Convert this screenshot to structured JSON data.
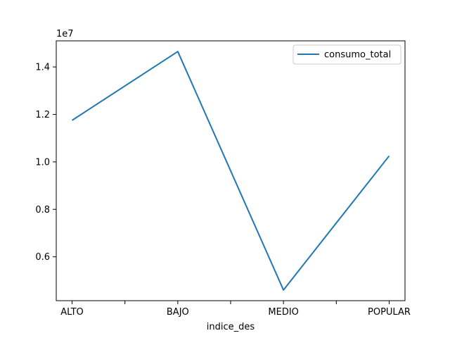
{
  "chart_data": {
    "type": "line",
    "categories": [
      "ALTO",
      "BAJO",
      "MEDIO",
      "POPULAR"
    ],
    "x_ticks": [
      0,
      0.5,
      1,
      1.5,
      2,
      2.5,
      3
    ],
    "series": [
      {
        "name": "consumo_total",
        "values": [
          11750000,
          14650000,
          4600000,
          10250000
        ],
        "color": "#1f77b4"
      }
    ],
    "xlabel": "indice_des",
    "ylabel": "",
    "offset_text": "1e7",
    "ylim": [
      4150000,
      15100000
    ],
    "y_ticks": [
      6000000,
      8000000,
      10000000,
      12000000,
      14000000
    ],
    "y_tick_labels": [
      "0.6",
      "0.8",
      "1.0",
      "1.2",
      "1.4"
    ],
    "legend_position": "upper right",
    "grid": false
  }
}
